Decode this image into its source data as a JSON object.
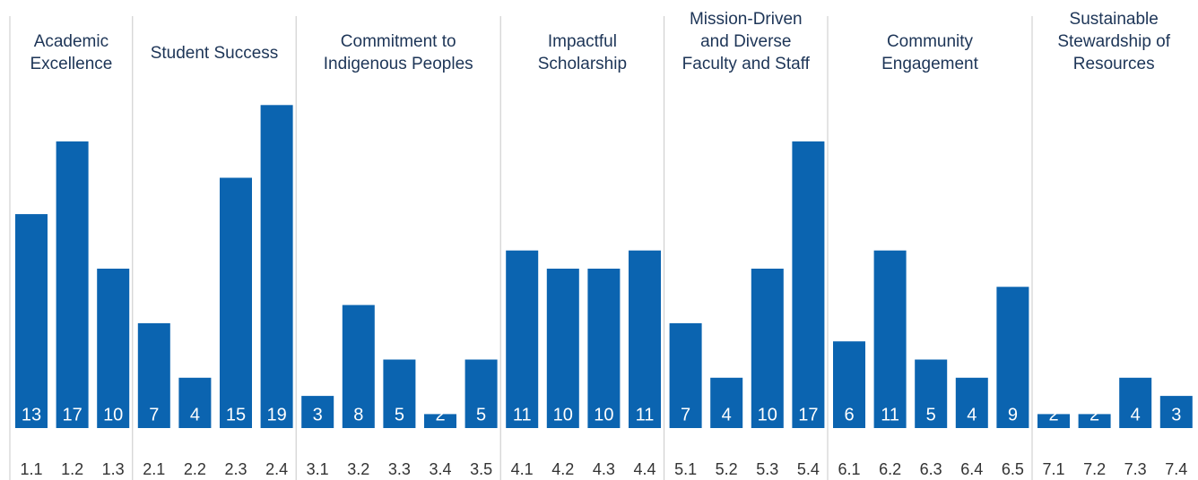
{
  "chart_data": {
    "type": "bar",
    "color": "#0b64b0",
    "groups": [
      {
        "name": [
          "Academic",
          "Excellence"
        ],
        "categories": [
          "1.1",
          "1.2",
          "1.3"
        ],
        "values": [
          13,
          17,
          10
        ]
      },
      {
        "name": [
          "Student Success"
        ],
        "categories": [
          "2.1",
          "2.2",
          "2.3",
          "2.4"
        ],
        "values": [
          7,
          4,
          15,
          19
        ]
      },
      {
        "name": [
          "Commitment to",
          "Indigenous Peoples"
        ],
        "categories": [
          "3.1",
          "3.2",
          "3.3",
          "3.4",
          "3.5"
        ],
        "values": [
          3,
          8,
          5,
          2,
          5
        ]
      },
      {
        "name": [
          "Impactful",
          "Scholarship"
        ],
        "categories": [
          "4.1",
          "4.2",
          "4.3",
          "4.4"
        ],
        "values": [
          11,
          10,
          10,
          11
        ]
      },
      {
        "name": [
          "Mission-Driven",
          "and Diverse",
          "Faculty and Staff"
        ],
        "categories": [
          "5.1",
          "5.2",
          "5.3",
          "5.4"
        ],
        "values": [
          7,
          4,
          10,
          17
        ]
      },
      {
        "name": [
          "Community",
          "Engagement"
        ],
        "categories": [
          "6.1",
          "6.2",
          "6.3",
          "6.4",
          "6.5"
        ],
        "values": [
          6,
          11,
          5,
          4,
          9
        ]
      },
      {
        "name": [
          "Sustainable",
          "Stewardship of",
          "Resources"
        ],
        "categories": [
          "7.1",
          "7.2",
          "7.3",
          "7.4"
        ],
        "values": [
          2,
          2,
          4,
          3
        ]
      }
    ]
  }
}
